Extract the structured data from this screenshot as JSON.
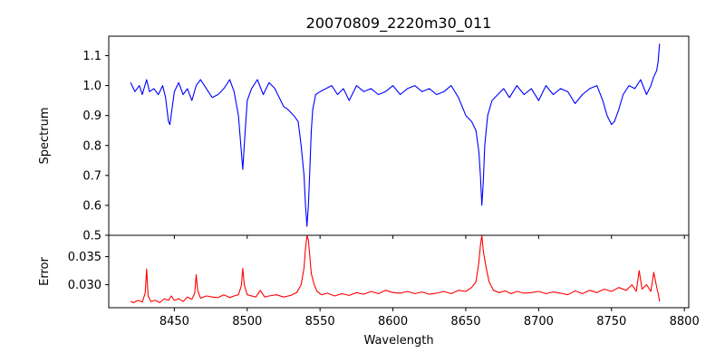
{
  "chart_data": [
    {
      "type": "line",
      "panel": "top",
      "title": "20070809_2220m30_011",
      "xlabel": "",
      "ylabel": "Spectrum",
      "xlim": [
        8405,
        8803
      ],
      "ylim": [
        0.5,
        1.165
      ],
      "x_ticks": [
        8450,
        8500,
        8550,
        8600,
        8650,
        8700,
        8750,
        8800
      ],
      "y_ticks": [
        0.5,
        0.6,
        0.7,
        0.8,
        0.9,
        1.0,
        1.1
      ],
      "y_tick_labels": [
        "0.5",
        "0.6",
        "0.7",
        "0.8",
        "0.9",
        "1.0",
        "1.1"
      ],
      "grid": false,
      "series": [
        {
          "color": "#0000ff",
          "x": [
            8420,
            8423,
            8426,
            8428,
            8431,
            8433,
            8436,
            8439,
            8442,
            8444,
            8446,
            8447,
            8450,
            8453,
            8456,
            8459,
            8462,
            8465,
            8468,
            8472,
            8476,
            8480,
            8484,
            8488,
            8491,
            8494,
            8496,
            8497,
            8498,
            8500,
            8503,
            8507,
            8511,
            8515,
            8519,
            8522,
            8525,
            8528,
            8532,
            8535,
            8537,
            8539,
            8540,
            8541,
            8542,
            8543,
            8544,
            8545,
            8547,
            8550,
            8554,
            8558,
            8562,
            8566,
            8570,
            8575,
            8580,
            8585,
            8590,
            8595,
            8600,
            8605,
            8610,
            8615,
            8620,
            8625,
            8630,
            8635,
            8640,
            8645,
            8650,
            8654,
            8657,
            8659,
            8660,
            8661,
            8662,
            8663,
            8665,
            8668,
            8672,
            8676,
            8680,
            8685,
            8690,
            8695,
            8700,
            8705,
            8710,
            8715,
            8720,
            8725,
            8730,
            8735,
            8740,
            8744,
            8747,
            8750,
            8752,
            8755,
            8758,
            8762,
            8766,
            8770,
            8774,
            8777,
            8779,
            8781,
            8782,
            8783
          ],
          "y": [
            1.01,
            0.98,
            1.0,
            0.97,
            1.02,
            0.98,
            0.99,
            0.97,
            1.0,
            0.96,
            0.88,
            0.87,
            0.98,
            1.01,
            0.97,
            0.99,
            0.95,
            1.0,
            1.02,
            0.99,
            0.96,
            0.97,
            0.99,
            1.02,
            0.98,
            0.9,
            0.78,
            0.72,
            0.8,
            0.95,
            0.99,
            1.02,
            0.97,
            1.01,
            0.99,
            0.96,
            0.93,
            0.92,
            0.9,
            0.88,
            0.8,
            0.7,
            0.6,
            0.53,
            0.6,
            0.72,
            0.85,
            0.92,
            0.97,
            0.98,
            0.99,
            1.0,
            0.97,
            0.99,
            0.95,
            1.0,
            0.98,
            0.99,
            0.97,
            0.98,
            1.0,
            0.97,
            0.99,
            1.0,
            0.98,
            0.99,
            0.97,
            0.98,
            1.0,
            0.96,
            0.9,
            0.88,
            0.85,
            0.78,
            0.7,
            0.6,
            0.68,
            0.8,
            0.9,
            0.95,
            0.97,
            0.99,
            0.96,
            1.0,
            0.97,
            0.99,
            0.95,
            1.0,
            0.97,
            0.99,
            0.98,
            0.94,
            0.97,
            0.99,
            1.0,
            0.95,
            0.9,
            0.87,
            0.88,
            0.92,
            0.97,
            1.0,
            0.99,
            1.02,
            0.97,
            1.0,
            1.03,
            1.05,
            1.08,
            1.14
          ]
        }
      ]
    },
    {
      "type": "line",
      "panel": "bottom",
      "title": "",
      "xlabel": "Wavelength",
      "ylabel": "Error",
      "xlim": [
        8405,
        8803
      ],
      "ylim": [
        0.0259,
        0.0388
      ],
      "x_ticks": [
        8450,
        8500,
        8550,
        8600,
        8650,
        8700,
        8750,
        8800
      ],
      "x_tick_labels": [
        "8450",
        "8500",
        "8550",
        "8600",
        "8650",
        "8700",
        "8750",
        "8800"
      ],
      "y_ticks": [
        0.03,
        0.035
      ],
      "y_tick_labels": [
        "0.030",
        "0.035"
      ],
      "grid": false,
      "series": [
        {
          "color": "#ff0000",
          "x": [
            8420,
            8422,
            8425,
            8428,
            8430,
            8431,
            8432,
            8434,
            8437,
            8440,
            8443,
            8446,
            8448,
            8450,
            8453,
            8456,
            8459,
            8462,
            8464,
            8465,
            8466,
            8468,
            8472,
            8476,
            8480,
            8484,
            8488,
            8491,
            8494,
            8496,
            8497,
            8498,
            8500,
            8503,
            8506,
            8509,
            8512,
            8515,
            8520,
            8525,
            8530,
            8534,
            8537,
            8539,
            8540,
            8541,
            8542,
            8543,
            8544,
            8546,
            8548,
            8551,
            8555,
            8560,
            8565,
            8570,
            8575,
            8580,
            8585,
            8590,
            8595,
            8600,
            8605,
            8610,
            8615,
            8620,
            8625,
            8630,
            8635,
            8640,
            8645,
            8650,
            8654,
            8657,
            8659,
            8660,
            8661,
            8662,
            8664,
            8666,
            8669,
            8673,
            8677,
            8681,
            8685,
            8690,
            8695,
            8700,
            8705,
            8710,
            8715,
            8720,
            8725,
            8730,
            8735,
            8740,
            8745,
            8750,
            8755,
            8760,
            8764,
            8767,
            8769,
            8771,
            8774,
            8777,
            8779,
            8781,
            8782,
            8783
          ],
          "y": [
            0.027,
            0.0268,
            0.0272,
            0.0269,
            0.0285,
            0.0328,
            0.028,
            0.027,
            0.0272,
            0.0268,
            0.0275,
            0.0272,
            0.028,
            0.0272,
            0.0275,
            0.027,
            0.0278,
            0.0274,
            0.0285,
            0.0318,
            0.029,
            0.0276,
            0.028,
            0.0278,
            0.0277,
            0.0282,
            0.0277,
            0.028,
            0.0282,
            0.0298,
            0.0329,
            0.03,
            0.0282,
            0.028,
            0.0278,
            0.029,
            0.0278,
            0.028,
            0.0282,
            0.0278,
            0.0281,
            0.0286,
            0.03,
            0.033,
            0.0365,
            0.0387,
            0.038,
            0.035,
            0.032,
            0.03,
            0.0288,
            0.0282,
            0.0285,
            0.028,
            0.0284,
            0.0281,
            0.0286,
            0.0283,
            0.0288,
            0.0284,
            0.029,
            0.0286,
            0.0285,
            0.0288,
            0.0284,
            0.0287,
            0.0283,
            0.0285,
            0.0288,
            0.0284,
            0.029,
            0.0288,
            0.0295,
            0.0305,
            0.034,
            0.037,
            0.0388,
            0.036,
            0.033,
            0.0305,
            0.029,
            0.0286,
            0.0289,
            0.0284,
            0.0288,
            0.0285,
            0.0286,
            0.0288,
            0.0284,
            0.0287,
            0.0285,
            0.0282,
            0.0289,
            0.0284,
            0.029,
            0.0286,
            0.0292,
            0.0288,
            0.0295,
            0.029,
            0.03,
            0.0288,
            0.0325,
            0.0292,
            0.03,
            0.0288,
            0.0322,
            0.0296,
            0.0285,
            0.027
          ]
        }
      ]
    }
  ]
}
